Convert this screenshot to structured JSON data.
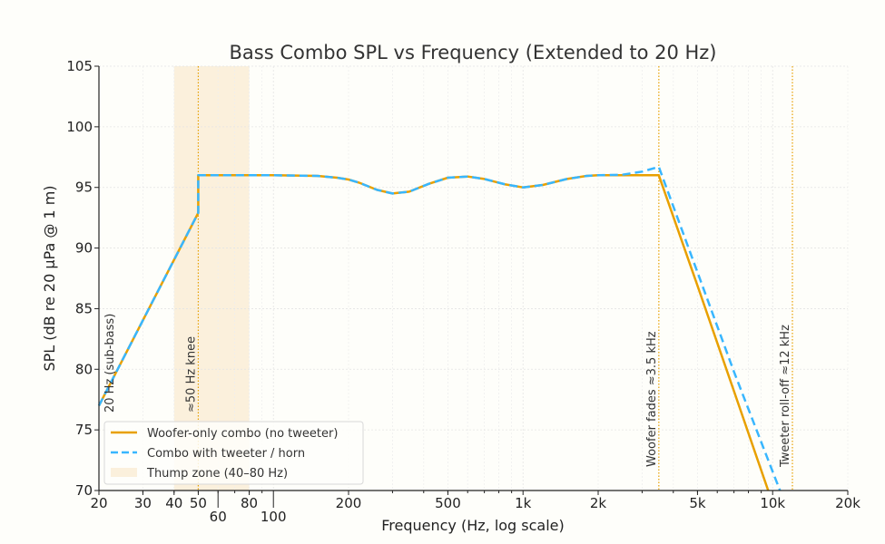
{
  "chart_data": {
    "type": "line",
    "title": "Bass Combo SPL vs Frequency (Extended to 20 Hz)",
    "xlabel": "Frequency (Hz, log scale)",
    "ylabel": "SPL (dB re 20 µPa @ 1 m)",
    "xscale": "log",
    "xlim": [
      20,
      20000
    ],
    "ylim": [
      70,
      105
    ],
    "grid": true,
    "legend_position": "lower-left",
    "xticks": [
      {
        "v": 20,
        "label": "20"
      },
      {
        "v": 30,
        "label": "30"
      },
      {
        "v": 40,
        "label": "40"
      },
      {
        "v": 50,
        "label": "50"
      },
      {
        "v": 60,
        "label": "60"
      },
      {
        "v": 80,
        "label": "80"
      },
      {
        "v": 100,
        "label": "100"
      },
      {
        "v": 200,
        "label": "200"
      },
      {
        "v": 500,
        "label": "500"
      },
      {
        "v": 1000,
        "label": "1k"
      },
      {
        "v": 2000,
        "label": "2k"
      },
      {
        "v": 5000,
        "label": "5k"
      },
      {
        "v": 10000,
        "label": "10k"
      },
      {
        "v": 20000,
        "label": "20k"
      }
    ],
    "yticks": [
      70,
      75,
      80,
      85,
      90,
      95,
      100,
      105
    ],
    "series": [
      {
        "name": "Woofer-only combo (no tweeter)",
        "color": "#e8a000",
        "style": "solid",
        "x": [
          20,
          50,
          50,
          100,
          150,
          180,
          200,
          220,
          260,
          300,
          350,
          420,
          500,
          600,
          700,
          850,
          1000,
          1200,
          1500,
          1800,
          2000,
          2500,
          3000,
          3500,
          5000,
          7000,
          9600
        ],
        "y": [
          77,
          92.9,
          96,
          96,
          95.95,
          95.8,
          95.65,
          95.4,
          94.8,
          94.5,
          94.65,
          95.3,
          95.8,
          95.9,
          95.7,
          95.25,
          95.0,
          95.2,
          95.7,
          95.95,
          96,
          96,
          96,
          96,
          86.9,
          78.2,
          70
        ]
      },
      {
        "name": "Combo with tweeter / horn",
        "color": "#38b6ff",
        "style": "dashed",
        "x": [
          20,
          50,
          50,
          100,
          150,
          180,
          200,
          220,
          260,
          300,
          350,
          420,
          500,
          600,
          700,
          850,
          1000,
          1200,
          1500,
          1800,
          2000,
          2500,
          3000,
          3500,
          5000,
          7000,
          10700
        ],
        "y": [
          77,
          92.9,
          96,
          96,
          95.95,
          95.8,
          95.65,
          95.4,
          94.8,
          94.5,
          94.65,
          95.3,
          95.8,
          95.9,
          95.7,
          95.25,
          95.0,
          95.2,
          95.7,
          95.95,
          96,
          96.05,
          96.3,
          96.7,
          88.0,
          79.8,
          70
        ]
      }
    ],
    "shaded_region": {
      "name": "Thump zone (40–80 Hz)",
      "x": [
        40,
        80
      ],
      "color": "#fbf0dc"
    },
    "vlines": [
      {
        "x": 50,
        "label": "≈50 Hz knee",
        "color": "#e8a000"
      },
      {
        "x": 3500,
        "label": "Woofer fades ≈3.5 kHz",
        "color": "#e8a000"
      },
      {
        "x": 12000,
        "label": "Tweeter roll-off ≈12 kHz",
        "color": "#e8a000"
      }
    ],
    "annotations": [
      {
        "x": 20,
        "label": "20 Hz (sub-bass)"
      }
    ]
  }
}
